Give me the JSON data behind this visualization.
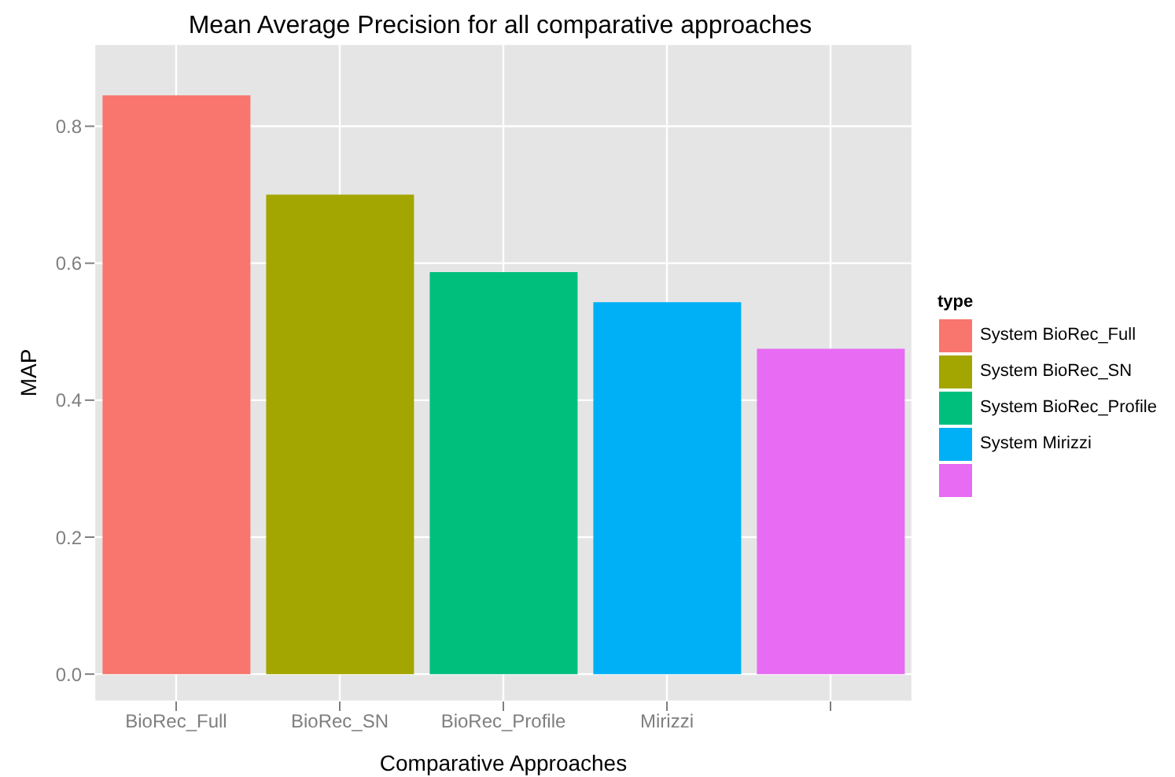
{
  "chart_data": {
    "type": "bar",
    "title": "Mean Average Precision for all comparative approaches",
    "xlabel": "Comparative  Approaches",
    "ylabel": "MAP",
    "legend_title": "type",
    "categories": [
      "BioRec_Full",
      "BioRec_SN",
      "BioRec_Profile",
      "Mirizzi",
      null
    ],
    "stacked": true,
    "series": [
      {
        "name": "System BioRec_Full",
        "color": "#f8766d",
        "values": [
          0.845,
          null,
          null,
          null,
          null
        ]
      },
      {
        "name": "System BioRec_SN",
        "color": "#a3a500",
        "values": [
          null,
          0.7,
          null,
          null,
          null
        ]
      },
      {
        "name": "System BioRec_Profile",
        "color": "#00bf7d",
        "values": [
          null,
          null,
          0.587,
          null,
          null
        ]
      },
      {
        "name": "System Mirizzi",
        "color": "#00b0f6",
        "values": [
          null,
          null,
          null,
          0.543,
          null
        ]
      },
      {
        "color": "#e76bf3",
        "values": [
          null,
          null,
          null,
          null,
          0.475
        ]
      }
    ],
    "ylim": [
      -0.04,
      0.92
    ],
    "yticks": [
      {
        "value": 0,
        "label": "0.0"
      },
      {
        "value": 0.2,
        "label": "0.2"
      },
      {
        "value": 0.4,
        "label": "0.4"
      },
      {
        "value": 0.6,
        "label": "0.6"
      },
      {
        "value": 0.8,
        "label": "0.8"
      }
    ],
    "grid": true,
    "legend": "right"
  }
}
